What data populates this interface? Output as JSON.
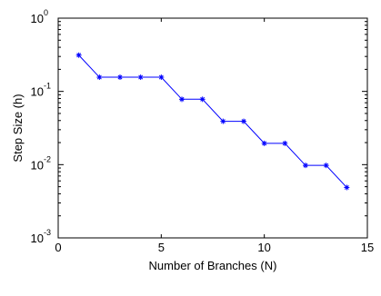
{
  "chart_data": {
    "type": "line",
    "title": "",
    "xlabel": "Number of Branches (N)",
    "ylabel": "Step Size (h)",
    "xlim": [
      0,
      15
    ],
    "ylim": [
      0.001,
      1
    ],
    "yscale": "log",
    "grid": false,
    "legend": "none",
    "x_ticks": [
      {
        "value": 0,
        "label": "0"
      },
      {
        "value": 5,
        "label": "5"
      },
      {
        "value": 10,
        "label": "10"
      },
      {
        "value": 15,
        "label": "15"
      }
    ],
    "y_ticks": [
      {
        "value": 1,
        "base": "10",
        "exponent": "0"
      },
      {
        "value": 0.1,
        "base": "10",
        "exponent": "-1"
      },
      {
        "value": 0.01,
        "base": "10",
        "exponent": "-2"
      },
      {
        "value": 0.001,
        "base": "10",
        "exponent": "-3"
      }
    ],
    "series": [
      {
        "color": "#0000ff",
        "marker": "asterisk",
        "x": [
          1,
          2,
          3,
          4,
          5,
          6,
          7,
          8,
          9,
          10,
          11,
          12,
          13,
          14
        ],
        "y": [
          0.3125,
          0.15625,
          0.15625,
          0.15625,
          0.15625,
          0.078125,
          0.078125,
          0.0390625,
          0.0390625,
          0.01953125,
          0.01953125,
          0.009765625,
          0.009765625,
          0.0048828125
        ]
      }
    ]
  }
}
